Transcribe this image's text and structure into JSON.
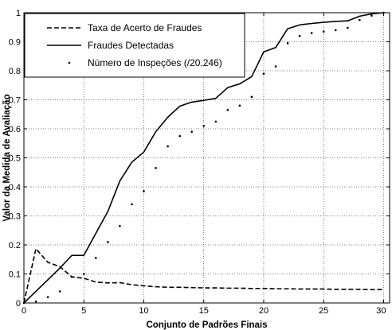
{
  "chart_data": {
    "type": "line",
    "xlabel": "Conjunto de Padrões Finais",
    "ylabel": "Valor da Medida de Avaliação",
    "xlim": [
      0,
      30.5
    ],
    "ylim": [
      0,
      1
    ],
    "xticks": [
      "0",
      "5",
      "10",
      "15",
      "20",
      "25",
      "30"
    ],
    "yticks": [
      "0",
      "0.1",
      "0.2",
      "0.3",
      "0.4",
      "0.5",
      "0.6",
      "0.7",
      "0.8",
      "0.9",
      "1"
    ],
    "grid": true,
    "legend_position": "top-left",
    "series": [
      {
        "name": "Taxa de Acerto de Fraudes",
        "style": "dashed",
        "color": "#000000",
        "x": [
          0,
          1,
          2,
          3,
          4,
          5,
          6,
          7,
          8,
          9,
          10,
          11,
          12,
          13,
          14,
          15,
          16,
          17,
          18,
          19,
          20,
          21,
          22,
          23,
          24,
          25,
          26,
          27,
          28,
          29,
          30
        ],
        "y": [
          0.0,
          0.187,
          0.14,
          0.125,
          0.09,
          0.085,
          0.072,
          0.069,
          0.07,
          0.063,
          0.059,
          0.056,
          0.054,
          0.054,
          0.053,
          0.052,
          0.052,
          0.051,
          0.051,
          0.05,
          0.05,
          0.049,
          0.049,
          0.048,
          0.048,
          0.048,
          0.047,
          0.047,
          0.047,
          0.046,
          0.046
        ]
      },
      {
        "name": "Fraudes Detectadas",
        "style": "solid",
        "color": "#000000",
        "x": [
          0,
          1,
          2,
          3,
          4,
          5,
          6,
          7,
          8,
          9,
          10,
          11,
          12,
          13,
          14,
          15,
          16,
          17,
          18,
          19,
          20,
          21,
          22,
          23,
          24,
          25,
          26,
          27,
          28,
          29,
          30
        ],
        "y": [
          0.0,
          0.04,
          0.08,
          0.12,
          0.164,
          0.164,
          0.24,
          0.315,
          0.42,
          0.485,
          0.52,
          0.59,
          0.64,
          0.678,
          0.692,
          0.698,
          0.705,
          0.742,
          0.755,
          0.78,
          0.865,
          0.88,
          0.945,
          0.958,
          0.963,
          0.967,
          0.97,
          0.972,
          0.988,
          0.996,
          1.0
        ]
      },
      {
        "name": "Número de Inspeções (/20.246)",
        "style": "dots",
        "color": "#000000",
        "x": [
          0,
          1,
          2,
          3,
          4,
          5,
          6,
          7,
          8,
          9,
          10,
          11,
          12,
          13,
          14,
          15,
          16,
          17,
          18,
          19,
          20,
          21,
          22,
          23,
          24,
          25,
          26,
          27,
          28,
          29,
          30
        ],
        "y": [
          0.0,
          0.005,
          0.02,
          0.04,
          0.09,
          0.1,
          0.155,
          0.21,
          0.265,
          0.34,
          0.385,
          0.465,
          0.54,
          0.575,
          0.59,
          0.61,
          0.625,
          0.665,
          0.68,
          0.71,
          0.79,
          0.815,
          0.895,
          0.92,
          0.93,
          0.935,
          0.94,
          0.948,
          0.975,
          0.99,
          1.0
        ]
      }
    ]
  }
}
